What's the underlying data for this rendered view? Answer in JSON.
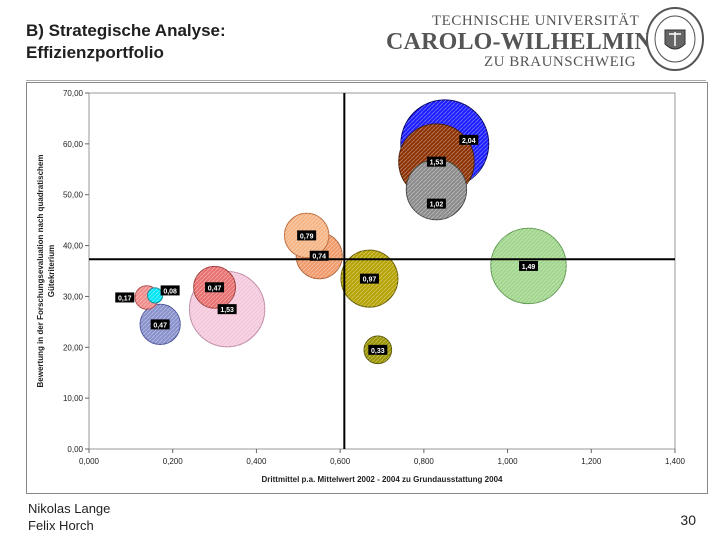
{
  "slide": {
    "title_line1": "B) Strategische Analyse:",
    "title_line2": "Effizienzportfolio",
    "author1": "Nikolas Lange",
    "author2": "Felix Horch",
    "page_number": "30"
  },
  "logo": {
    "line1": "TECHNISCHE UNIVERSITÄT",
    "line2": "CAROLO-WILHELMINA",
    "line3": "ZU BRAUNSCHWEIG",
    "seal_text": "CAROLO-WILHELMINA · BRAUNSCHWEIG"
  },
  "chart_data": {
    "type": "scatter",
    "title": "",
    "xlabel": "Drittmittel p.a. Mittelwert 2002 - 2004 zu Grundausstattung 2004",
    "ylabel_line1": "Bewertung in der Forschungsevaluation nach quadratischem",
    "ylabel_line2": "Gütekriterium",
    "xlim": [
      0.0,
      1.4
    ],
    "ylim": [
      0.0,
      70.0
    ],
    "x_ticks": [
      "0,000",
      "0,200",
      "0,400",
      "0,600",
      "0,800",
      "1,000",
      "1,200",
      "1,400"
    ],
    "y_ticks": [
      "0,00",
      "10,00",
      "20,00",
      "30,00",
      "40,00",
      "50,00",
      "60,00",
      "70,00"
    ],
    "reference_lines": {
      "x": 0.61,
      "y": 37.3
    },
    "grid": false,
    "bubbles": [
      {
        "label": "2,04",
        "x": 0.85,
        "y": 60.0,
        "r": 0.105,
        "color": "#1a1aff",
        "stroke": "#000066"
      },
      {
        "label": "1,02",
        "x": 0.83,
        "y": 51.0,
        "r": 0.072,
        "color": "#8a8a8a",
        "stroke": "#444444"
      },
      {
        "label": "1,53",
        "x": 0.83,
        "y": 56.5,
        "r": 0.09,
        "color": "#8b2f00",
        "stroke": "#4a1a00"
      },
      {
        "label": "0,79",
        "x": 0.52,
        "y": 42.0,
        "r": 0.053,
        "color": "#f4b483",
        "stroke": "#c07040"
      },
      {
        "label": "0,74",
        "x": 0.55,
        "y": 38.0,
        "r": 0.055,
        "color": "#f09a6a",
        "stroke": "#b06030"
      },
      {
        "label": "0,97",
        "x": 0.67,
        "y": 33.5,
        "r": 0.068,
        "color": "#b5a200",
        "stroke": "#6a5e00"
      },
      {
        "label": "1,49",
        "x": 1.05,
        "y": 36.0,
        "r": 0.09,
        "color": "#9ed58a",
        "stroke": "#5f9950"
      },
      {
        "label": "0,33",
        "x": 0.69,
        "y": 19.5,
        "r": 0.033,
        "color": "#9a9400",
        "stroke": "#5a5600"
      },
      {
        "label": "0,47",
        "x": 0.3,
        "y": 31.8,
        "r": 0.05,
        "color": "#e86f6f",
        "stroke": "#a03a3a"
      },
      {
        "label": "1,53",
        "x": 0.33,
        "y": 27.5,
        "r": 0.09,
        "color": "#f4c8dc",
        "stroke": "#c08aa5"
      },
      {
        "label": "0,47",
        "x": 0.17,
        "y": 24.5,
        "r": 0.048,
        "color": "#8890cc",
        "stroke": "#4a5299"
      },
      {
        "label": "0,17",
        "x": 0.138,
        "y": 29.8,
        "r": 0.028,
        "color": "#f08a8a",
        "stroke": "#b04a4a"
      },
      {
        "label": "0,08",
        "x": 0.158,
        "y": 30.2,
        "r": 0.018,
        "color": "#00e5f5",
        "stroke": "#008a99"
      }
    ]
  }
}
